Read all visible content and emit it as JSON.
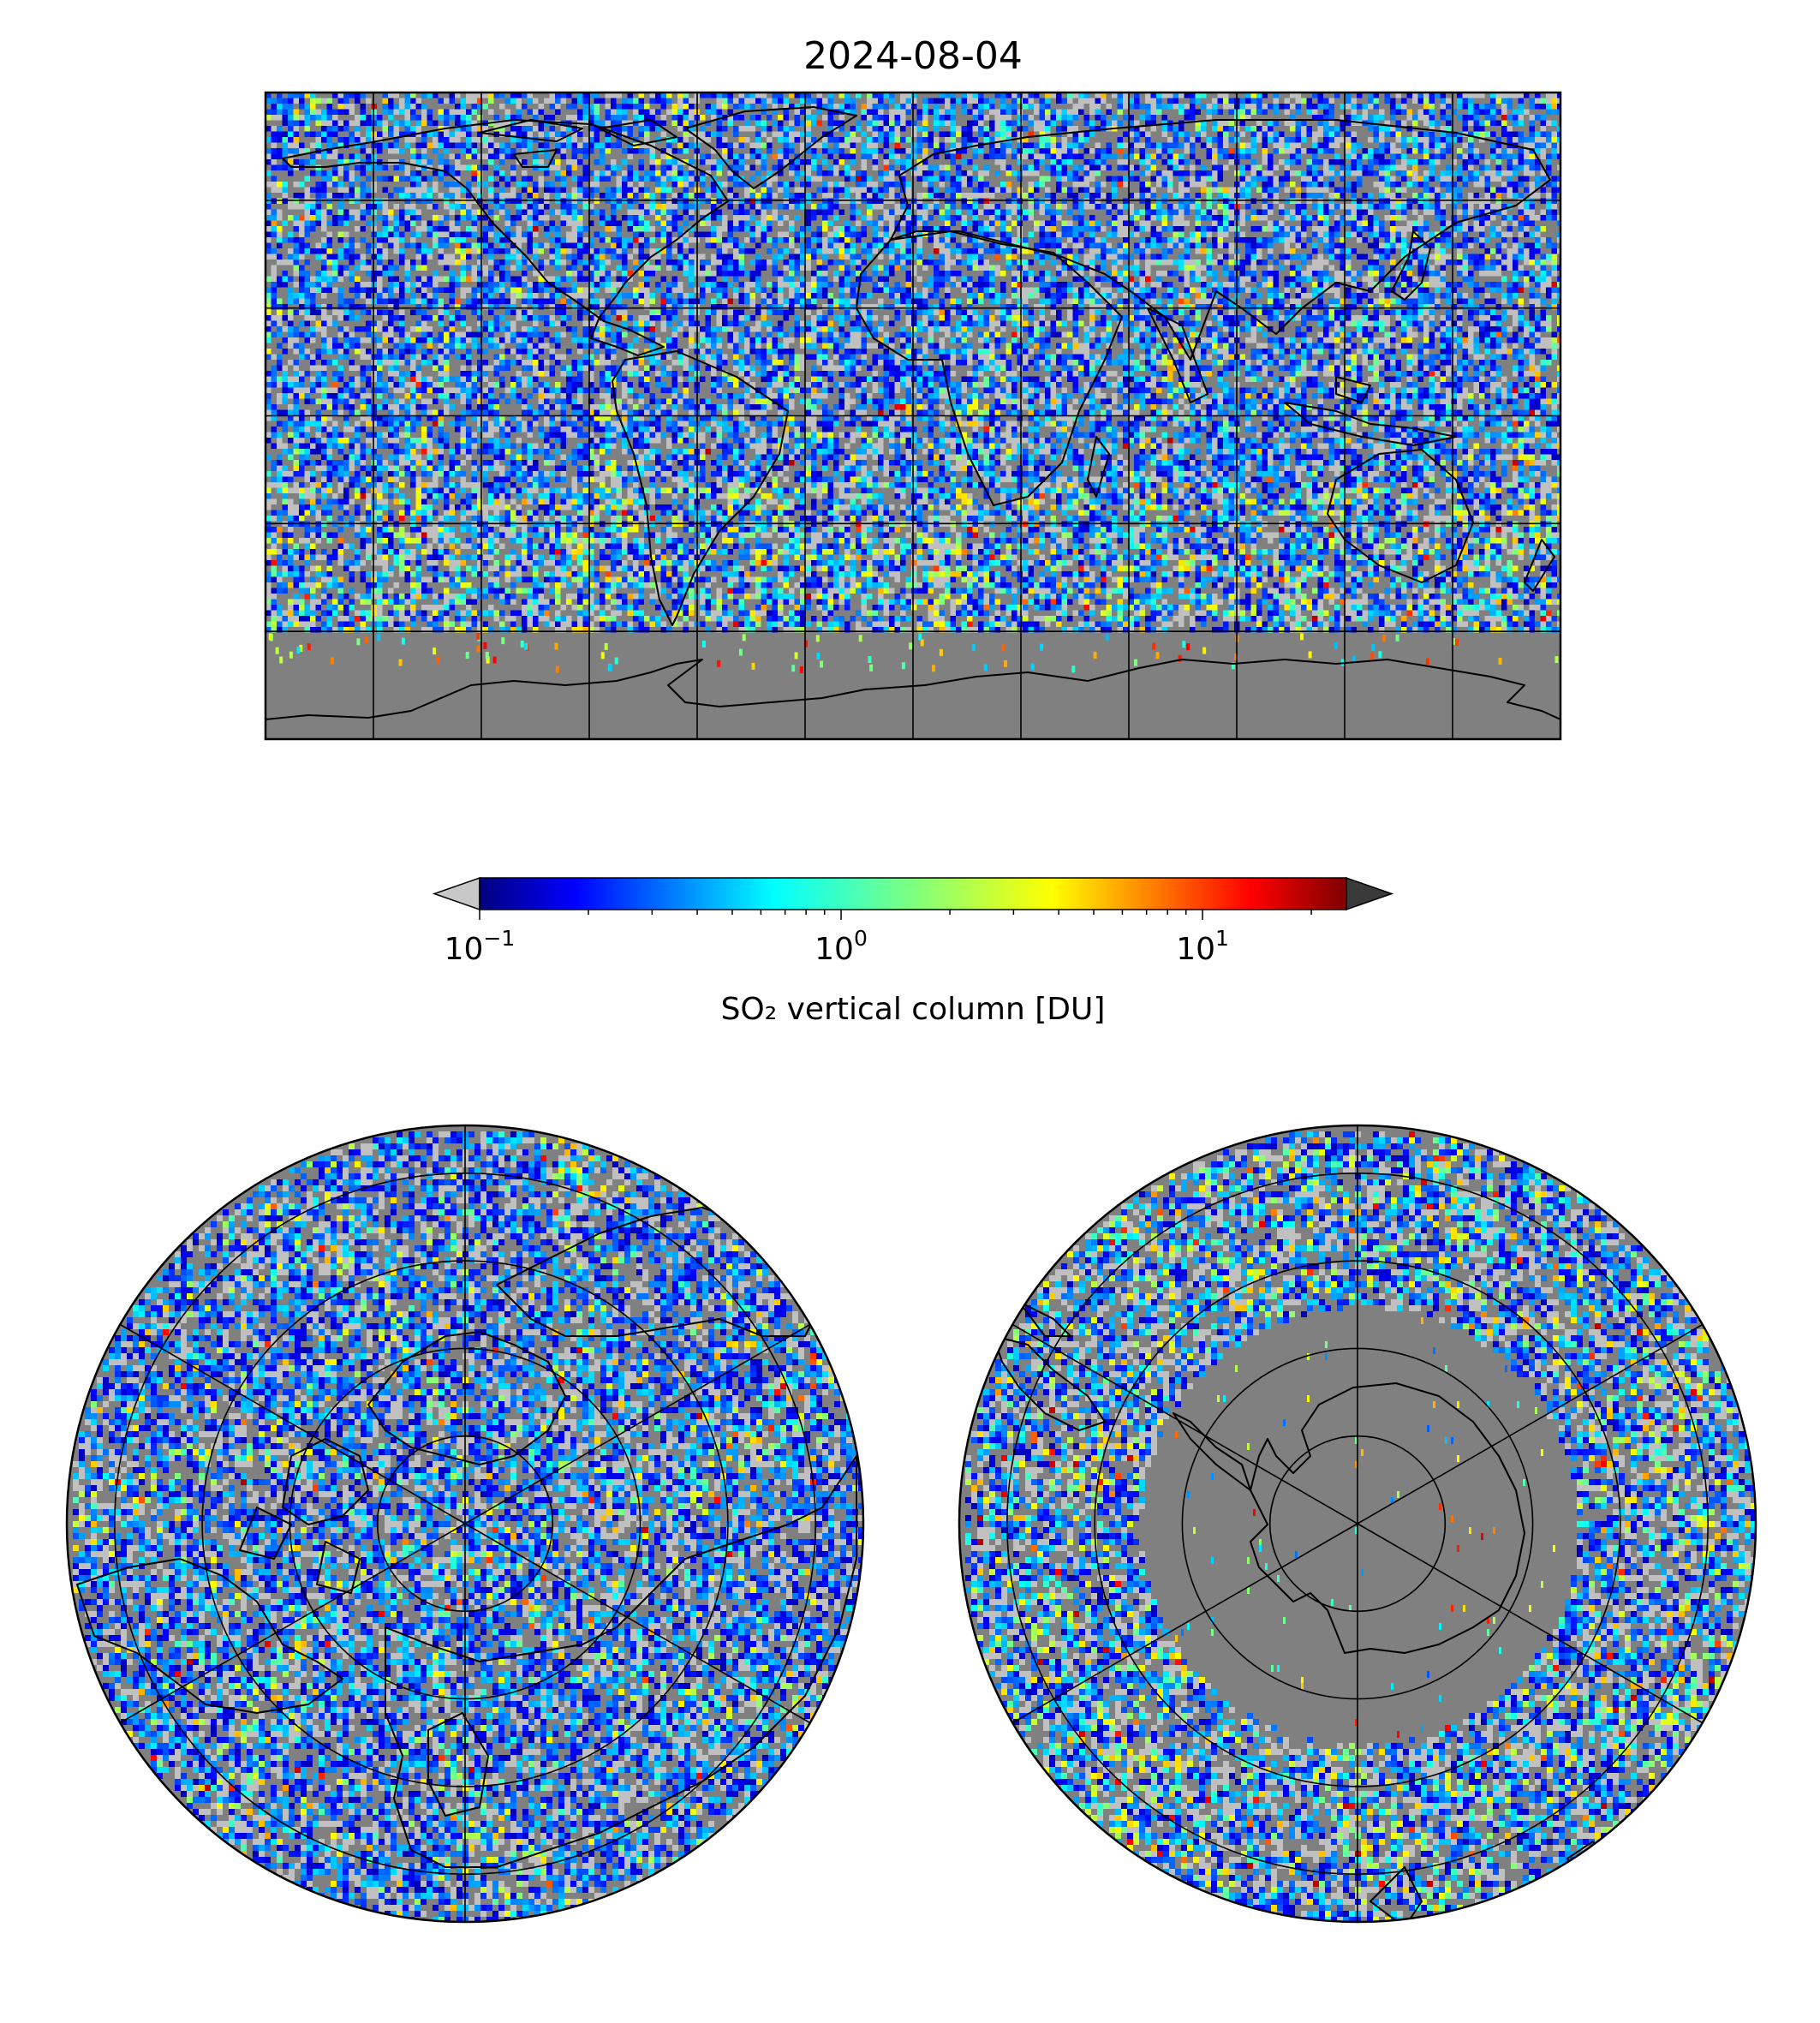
{
  "title": "2024-08-04",
  "colorbar": {
    "label": "SO₂ vertical column [DU]",
    "scale": "log",
    "range": [
      0.1,
      25
    ],
    "extend": "both",
    "colormap": "jet",
    "under_color": "#c8c8c8",
    "over_color": "#3a3a3a",
    "ticks": [
      {
        "value": 0.1,
        "base": "10",
        "exp": "−1"
      },
      {
        "value": 1,
        "base": "10",
        "exp": "0"
      },
      {
        "value": 10,
        "base": "10",
        "exp": "1"
      }
    ]
  },
  "maps": {
    "global": {
      "projection": "plate-carree",
      "gridlines": {
        "lon_step_deg": 30,
        "lat_step_deg": 30
      }
    },
    "north_polar": {
      "projection": "north-polar-stereographic",
      "rings": 4,
      "meridians": 6
    },
    "south_polar": {
      "projection": "south-polar-stereographic",
      "rings": 4,
      "meridians": 6
    }
  },
  "colors": {
    "no_data": "#808080",
    "below_range": "#c0c0c0",
    "coastline": "#000000",
    "grid": "#000000"
  }
}
